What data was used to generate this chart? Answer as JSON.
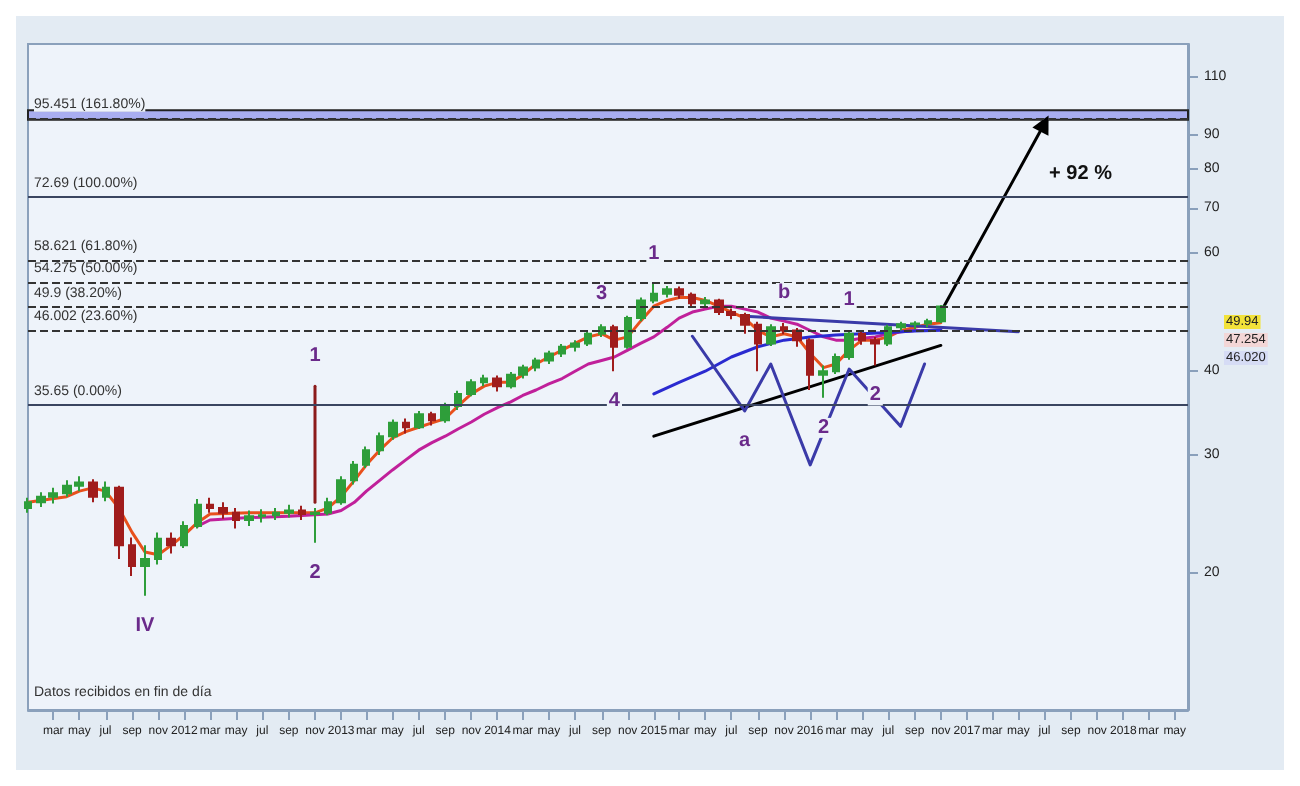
{
  "chart_data": {
    "type": "candlestick",
    "log": "y",
    "x": [
      "2011-01",
      "2011-02",
      "2011-03",
      "2011-04",
      "2011-05",
      "2011-06",
      "2011-07",
      "2011-08",
      "2011-09",
      "2011-10",
      "2011-11",
      "2011-12",
      "2012-01",
      "2012-02",
      "2012-03",
      "2012-04",
      "2012-05",
      "2012-06",
      "2012-07",
      "2012-08",
      "2012-09",
      "2012-10",
      "2012-11",
      "2012-12",
      "2013-01",
      "2013-02",
      "2013-03",
      "2013-04",
      "2013-05",
      "2013-06",
      "2013-07",
      "2013-08",
      "2013-09",
      "2013-10",
      "2013-11",
      "2013-12",
      "2014-01",
      "2014-02",
      "2014-03",
      "2014-04",
      "2014-05",
      "2014-06",
      "2014-07",
      "2014-08",
      "2014-09",
      "2014-10",
      "2014-11",
      "2014-12",
      "2015-01",
      "2015-02",
      "2015-03",
      "2015-04",
      "2015-05",
      "2015-06",
      "2015-07",
      "2015-08",
      "2015-09",
      "2015-10",
      "2015-11",
      "2015-12",
      "2016-01",
      "2016-02",
      "2016-03",
      "2016-04",
      "2016-05",
      "2016-06",
      "2016-07",
      "2016-08",
      "2016-09",
      "2016-10",
      "2016-11"
    ],
    "ohlc": [
      [
        25.0,
        25.9,
        24.6,
        25.5
      ],
      [
        25.5,
        26.4,
        25.1,
        26.0
      ],
      [
        26.0,
        26.8,
        25.4,
        26.3
      ],
      [
        26.3,
        27.5,
        26.0,
        27.0
      ],
      [
        27.0,
        27.9,
        26.5,
        27.3
      ],
      [
        27.3,
        27.6,
        25.5,
        26.0
      ],
      [
        26.0,
        27.4,
        25.6,
        26.8
      ],
      [
        26.8,
        27.0,
        21.0,
        22.0
      ],
      [
        22.0,
        22.6,
        19.8,
        20.5
      ],
      [
        20.5,
        22.0,
        18.5,
        21.0
      ],
      [
        21.0,
        23.0,
        20.6,
        22.5
      ],
      [
        22.5,
        23.0,
        21.4,
        22.0
      ],
      [
        22.0,
        23.9,
        21.8,
        23.5
      ],
      [
        23.5,
        25.8,
        23.3,
        25.3
      ],
      [
        25.3,
        25.9,
        24.6,
        25.0
      ],
      [
        25.0,
        25.5,
        24.1,
        24.6
      ],
      [
        24.6,
        25.0,
        23.3,
        24.0
      ],
      [
        24.0,
        24.8,
        23.5,
        24.3
      ],
      [
        24.3,
        24.9,
        23.8,
        24.4
      ],
      [
        24.4,
        25.0,
        24.0,
        24.6
      ],
      [
        24.6,
        25.3,
        24.2,
        24.8
      ],
      [
        24.8,
        25.2,
        24.0,
        24.5
      ],
      [
        24.5,
        25.0,
        22.2,
        24.6
      ],
      [
        24.6,
        25.9,
        24.4,
        25.5
      ],
      [
        25.5,
        27.9,
        25.3,
        27.5
      ],
      [
        27.5,
        29.4,
        27.1,
        29.0
      ],
      [
        29.0,
        30.9,
        28.7,
        30.5
      ],
      [
        30.5,
        32.4,
        30.0,
        32.0
      ],
      [
        32.0,
        33.9,
        31.6,
        33.5
      ],
      [
        33.5,
        34.0,
        32.3,
        33.0
      ],
      [
        33.0,
        34.9,
        32.8,
        34.5
      ],
      [
        34.5,
        34.8,
        33.2,
        33.8
      ],
      [
        33.8,
        35.9,
        33.5,
        35.5
      ],
      [
        35.5,
        37.4,
        35.0,
        37.0
      ],
      [
        37.0,
        38.9,
        36.7,
        38.5
      ],
      [
        38.5,
        39.5,
        38.0,
        39.0
      ],
      [
        39.0,
        39.4,
        37.3,
        38.0
      ],
      [
        38.0,
        39.9,
        37.7,
        39.5
      ],
      [
        39.5,
        40.9,
        39.0,
        40.5
      ],
      [
        40.5,
        41.9,
        40.0,
        41.5
      ],
      [
        41.5,
        42.9,
        41.0,
        42.5
      ],
      [
        42.5,
        43.9,
        42.0,
        43.5
      ],
      [
        43.5,
        44.5,
        42.8,
        44.0
      ],
      [
        44.0,
        45.9,
        43.6,
        45.5
      ],
      [
        45.5,
        47.0,
        45.0,
        46.5
      ],
      [
        46.5,
        46.9,
        40.0,
        43.5
      ],
      [
        43.5,
        48.4,
        43.2,
        48.0
      ],
      [
        48.0,
        51.5,
        47.5,
        51.0
      ],
      [
        51.0,
        54.0,
        50.5,
        52.2
      ],
      [
        52.2,
        53.6,
        51.5,
        53.0
      ],
      [
        53.0,
        53.5,
        51.3,
        52.0
      ],
      [
        52.0,
        52.4,
        50.0,
        50.5
      ],
      [
        50.5,
        51.6,
        49.8,
        51.0
      ],
      [
        51.0,
        51.3,
        48.5,
        49.0
      ],
      [
        49.0,
        49.6,
        47.8,
        48.5
      ],
      [
        48.5,
        48.9,
        45.5,
        46.9
      ],
      [
        46.9,
        47.4,
        40.0,
        44.0
      ],
      [
        44.0,
        47.0,
        43.6,
        46.5
      ],
      [
        46.5,
        47.2,
        45.4,
        46.0
      ],
      [
        46.0,
        46.4,
        43.5,
        44.5
      ],
      [
        44.5,
        44.8,
        37.5,
        39.5
      ],
      [
        39.5,
        40.8,
        36.5,
        40.0
      ],
      [
        40.0,
        42.5,
        39.6,
        42.0
      ],
      [
        42.0,
        46.0,
        41.6,
        45.5
      ],
      [
        45.5,
        45.8,
        43.8,
        44.5
      ],
      [
        44.5,
        45.0,
        40.8,
        44.0
      ],
      [
        44.0,
        46.9,
        43.6,
        46.5
      ],
      [
        46.5,
        47.4,
        46.0,
        47.0
      ],
      [
        47.0,
        47.5,
        46.2,
        47.1
      ],
      [
        47.1,
        47.9,
        46.5,
        47.5
      ],
      [
        47.5,
        50.2,
        47.2,
        49.94
      ]
    ],
    "colors": [
      "#2e9e3a",
      "#2e9e3a",
      "#2e9e3a",
      "#2e9e3a",
      "#2e9e3a",
      "#a01c1c",
      "#2e9e3a",
      "#a01c1c",
      "#a01c1c",
      "#2e9e3a",
      "#2e9e3a",
      "#a01c1c",
      "#2e9e3a",
      "#2e9e3a",
      "#a01c1c",
      "#a01c1c",
      "#a01c1c",
      "#2e9e3a",
      "#2e9e3a",
      "#2e9e3a",
      "#2e9e3a",
      "#a01c1c",
      "#2e9e3a",
      "#2e9e3a",
      "#2e9e3a",
      "#2e9e3a",
      "#2e9e3a",
      "#2e9e3a",
      "#2e9e3a",
      "#a01c1c",
      "#2e9e3a",
      "#a01c1c",
      "#2e9e3a",
      "#2e9e3a",
      "#2e9e3a",
      "#2e9e3a",
      "#a01c1c",
      "#2e9e3a",
      "#2e9e3a",
      "#2e9e3a",
      "#2e9e3a",
      "#2e9e3a",
      "#2e9e3a",
      "#2e9e3a",
      "#2e9e3a",
      "#a01c1c",
      "#2e9e3a",
      "#2e9e3a",
      "#2e9e3a",
      "#2e9e3a",
      "#a01c1c",
      "#a01c1c",
      "#2e9e3a",
      "#a01c1c",
      "#a01c1c",
      "#a01c1c",
      "#a01c1c",
      "#2e9e3a",
      "#a01c1c",
      "#a01c1c",
      "#a01c1c",
      "#2e9e3a",
      "#2e9e3a",
      "#2e9e3a",
      "#a01c1c",
      "#a01c1c",
      "#2e9e3a",
      "#2e9e3a",
      "#2e9e3a",
      "#2e9e3a",
      "#2e9e3a"
    ],
    "series": [
      {
        "type": "line",
        "color": "#e8501c",
        "x": [
          "2011-01",
          "2011-04",
          "2011-05",
          "2011-06",
          "2011-07",
          "2011-08",
          "2011-09",
          "2011-10",
          "2011-11",
          "2011-12",
          "2012-01",
          "2012-02",
          "2012-03",
          "2012-06",
          "2012-09",
          "2012-11",
          "2012-12",
          "2013-01",
          "2013-02",
          "2013-03",
          "2013-04",
          "2013-05",
          "2013-06",
          "2013-07",
          "2013-08",
          "2013-09",
          "2013-10",
          "2013-11",
          "2013-12",
          "2014-01",
          "2014-02",
          "2014-03",
          "2014-04",
          "2014-05",
          "2014-06",
          "2014-07",
          "2014-08",
          "2014-09",
          "2014-10",
          "2014-11",
          "2014-12",
          "2015-01",
          "2015-02",
          "2015-03",
          "2015-04",
          "2015-05",
          "2015-06",
          "2015-07",
          "2015-08",
          "2015-09",
          "2015-10",
          "2015-11",
          "2015-12",
          "2016-01",
          "2016-02",
          "2016-03",
          "2016-04",
          "2016-05",
          "2016-06",
          "2016-07",
          "2016-08",
          "2016-09",
          "2016-10",
          "2016-11"
        ],
        "values": [
          25.5,
          26,
          26.5,
          26.8,
          26.5,
          25,
          23,
          21.5,
          21.3,
          22,
          22.8,
          23.8,
          24.5,
          24.6,
          24.6,
          24.6,
          25,
          26,
          27.5,
          29,
          30.5,
          31.8,
          32.5,
          33,
          33.5,
          34,
          35.5,
          37,
          38,
          38.5,
          38.5,
          39.5,
          41,
          42,
          43,
          44,
          45,
          45.5,
          44.5,
          45,
          47.5,
          50,
          51,
          51.5,
          51.5,
          51,
          50,
          49,
          48,
          46,
          45,
          45.5,
          45,
          42.5,
          40.5,
          41,
          43,
          44.5,
          44.5,
          45,
          46,
          46.5,
          47,
          47.25
        ]
      },
      {
        "type": "line",
        "color": "#c0209a",
        "x": [
          "2012-02",
          "2012-03",
          "2012-06",
          "2012-09",
          "2012-12",
          "2013-01",
          "2013-02",
          "2013-03",
          "2013-04",
          "2013-05",
          "2013-06",
          "2013-07",
          "2013-08",
          "2013-09",
          "2013-10",
          "2013-11",
          "2013-12",
          "2014-01",
          "2014-02",
          "2014-03",
          "2014-04",
          "2014-05",
          "2014-06",
          "2014-07",
          "2014-08",
          "2014-09",
          "2014-10",
          "2014-11",
          "2014-12",
          "2015-01",
          "2015-02",
          "2015-03",
          "2015-04",
          "2015-05",
          "2015-06",
          "2015-07",
          "2015-08",
          "2015-09",
          "2015-10",
          "2015-11",
          "2015-12",
          "2016-01",
          "2016-02",
          "2016-03",
          "2016-04",
          "2016-05",
          "2016-06",
          "2016-07",
          "2016-08",
          "2016-09",
          "2016-10",
          "2016-11"
        ],
        "values": [
          23.5,
          24,
          24.2,
          24.3,
          24.5,
          24.8,
          25.5,
          26.5,
          27.5,
          28.5,
          29.5,
          30.5,
          31.3,
          32,
          32.8,
          33.6,
          34.5,
          35.3,
          36,
          36.8,
          37.5,
          38.3,
          39,
          40,
          41,
          41.5,
          42,
          43,
          44,
          45,
          46.5,
          48,
          49,
          49.5,
          50,
          50,
          49.5,
          49,
          48,
          47.5,
          47,
          46,
          45,
          44.5,
          44.5,
          44.8,
          45,
          45.5,
          45.8,
          46,
          46,
          46.1
        ]
      },
      {
        "type": "line",
        "color": "#2a2ad0",
        "x": [
          "2015-01",
          "2015-03",
          "2015-05",
          "2015-07",
          "2015-09",
          "2015-11",
          "2016-01",
          "2016-03",
          "2016-05",
          "2016-07",
          "2016-09",
          "2016-11"
        ],
        "values": [
          37,
          38.5,
          40,
          42,
          43.5,
          44.5,
          45,
          45.3,
          45.5,
          45.7,
          45.9,
          46.02
        ]
      },
      {
        "type": "line",
        "color": "#000000",
        "x": [
          "2015-01",
          "2016-11"
        ],
        "values": [
          32.0,
          43.7
        ]
      },
      {
        "type": "line",
        "color": "#3a3aa8",
        "x": [
          "2015-08",
          "2017-05"
        ],
        "values": [
          48.3,
          45.8
        ]
      },
      {
        "type": "line",
        "color": "#3a3aa8",
        "x": [
          "2015-04",
          "2015-08",
          "2015-10",
          "2016-01",
          "2016-04",
          "2016-07-30",
          "2016-09-24"
        ],
        "values": [
          45.1,
          34.9,
          41.0,
          29.0,
          40.3,
          33.1,
          41.0
        ]
      },
      {
        "type": "line",
        "color": "#8b1a1a",
        "x": [
          "2012-11",
          "2012-11"
        ],
        "values": [
          25.5,
          38.0
        ]
      },
      {
        "type": "line",
        "color": "#000000",
        "marker": "triangle",
        "x": [
          "2016-11",
          "2017-07"
        ],
        "values": [
          49.0,
          93.6
        ]
      }
    ],
    "ref_lines": [
      {
        "axis": "y",
        "value": 95.451,
        "label": "95.451 (161.80%)",
        "line_style": "dashed",
        "color": "#333333"
      },
      {
        "axis": "y",
        "value": 72.69,
        "label": "72.69 (100.00%)",
        "line_style": "solid",
        "color": "#3a4560"
      },
      {
        "axis": "y",
        "value": 58.621,
        "label": "58.621 (61.80%)",
        "line_style": "dashed",
        "color": "#333333"
      },
      {
        "axis": "y",
        "value": 54.275,
        "label": "54.275 (50.00%)",
        "line_style": "dashed",
        "color": "#333333"
      },
      {
        "axis": "y",
        "value": 49.9,
        "label": "49.9 (38.20%)",
        "line_style": "dashed",
        "color": "#333333"
      },
      {
        "axis": "y",
        "value": 46.002,
        "label": "46.002 (23.60%)",
        "line_style": "dashed",
        "color": "#333333"
      },
      {
        "axis": "y",
        "value": 35.65,
        "label": "35.65 (0.00%)",
        "line_style": "solid",
        "color": "#3a4560"
      }
    ],
    "bands": [
      {
        "axis": "y",
        "from": 94.8,
        "to": 98.0,
        "color": "#a9aef0"
      }
    ],
    "xlim": [
      "2011-01-01",
      "2018-06-01"
    ],
    "xticks": [
      {
        "value": "2011-03",
        "label": "mar"
      },
      {
        "value": "2011-05",
        "label": "may"
      },
      {
        "value": "2011-07",
        "label": "jul"
      },
      {
        "value": "2011-09",
        "label": "sep"
      },
      {
        "value": "2011-11",
        "label": "nov"
      },
      {
        "value": "2012-01",
        "label": "2012"
      },
      {
        "value": "2012-03",
        "label": "mar"
      },
      {
        "value": "2012-05",
        "label": "may"
      },
      {
        "value": "2012-07",
        "label": "jul"
      },
      {
        "value": "2012-09",
        "label": "sep"
      },
      {
        "value": "2012-11",
        "label": "nov"
      },
      {
        "value": "2013-01",
        "label": "2013"
      },
      {
        "value": "2013-03",
        "label": "mar"
      },
      {
        "value": "2013-05",
        "label": "may"
      },
      {
        "value": "2013-07",
        "label": "jul"
      },
      {
        "value": "2013-09",
        "label": "sep"
      },
      {
        "value": "2013-11",
        "label": "nov"
      },
      {
        "value": "2014-01",
        "label": "2014"
      },
      {
        "value": "2014-03",
        "label": "mar"
      },
      {
        "value": "2014-05",
        "label": "may"
      },
      {
        "value": "2014-07",
        "label": "jul"
      },
      {
        "value": "2014-09",
        "label": "sep"
      },
      {
        "value": "2014-11",
        "label": "nov"
      },
      {
        "value": "2015-01",
        "label": "2015"
      },
      {
        "value": "2015-03",
        "label": "mar"
      },
      {
        "value": "2015-05",
        "label": "may"
      },
      {
        "value": "2015-07",
        "label": "jul"
      },
      {
        "value": "2015-09",
        "label": "sep"
      },
      {
        "value": "2015-11",
        "label": "nov"
      },
      {
        "value": "2016-01",
        "label": "2016"
      },
      {
        "value": "2016-03",
        "label": "mar"
      },
      {
        "value": "2016-05",
        "label": "may"
      },
      {
        "value": "2016-07",
        "label": "jul"
      },
      {
        "value": "2016-09",
        "label": "sep"
      },
      {
        "value": "2016-11",
        "label": "nov"
      },
      {
        "value": "2017-01",
        "label": "2017"
      },
      {
        "value": "2017-03",
        "label": "mar"
      },
      {
        "value": "2017-05",
        "label": "may"
      },
      {
        "value": "2017-07",
        "label": "jul"
      },
      {
        "value": "2017-09",
        "label": "sep"
      },
      {
        "value": "2017-11",
        "label": "nov"
      },
      {
        "value": "2018-01",
        "label": "2018"
      },
      {
        "value": "2018-03",
        "label": "mar"
      },
      {
        "value": "2018-05",
        "label": "may"
      }
    ],
    "ylim": [
      12.5,
      123
    ],
    "yticks": [
      20,
      30,
      40,
      60,
      70,
      80,
      90,
      110
    ],
    "annotations": [
      {
        "text": "IV",
        "x": "2011-10",
        "y": 18.5
      },
      {
        "text": "1",
        "x": "2012-11",
        "y": 38.0
      },
      {
        "text": "2",
        "x": "2012-11",
        "y": 22.2
      },
      {
        "text": "3",
        "x": "2014-09",
        "y": 47.0
      },
      {
        "text": "4",
        "x": "2014-10",
        "y": 40.0
      },
      {
        "text": "1",
        "x": "2015-01",
        "y": 54.0
      },
      {
        "text": "a",
        "x": "2015-08",
        "y": 34.9
      },
      {
        "text": "b",
        "x": "2015-11",
        "y": 47.2
      },
      {
        "text": "2",
        "x": "2016-02",
        "y": 36.5
      },
      {
        "text": "1",
        "x": "2016-04",
        "y": 46.0
      },
      {
        "text": "2",
        "x": "2016-06",
        "y": 40.8
      },
      {
        "text": "+ 92 %",
        "x": "2017-07",
        "y": 93.6
      },
      "49.94",
      "47.254",
      "46.020",
      "Datos recibidos en fin de día"
    ]
  }
}
